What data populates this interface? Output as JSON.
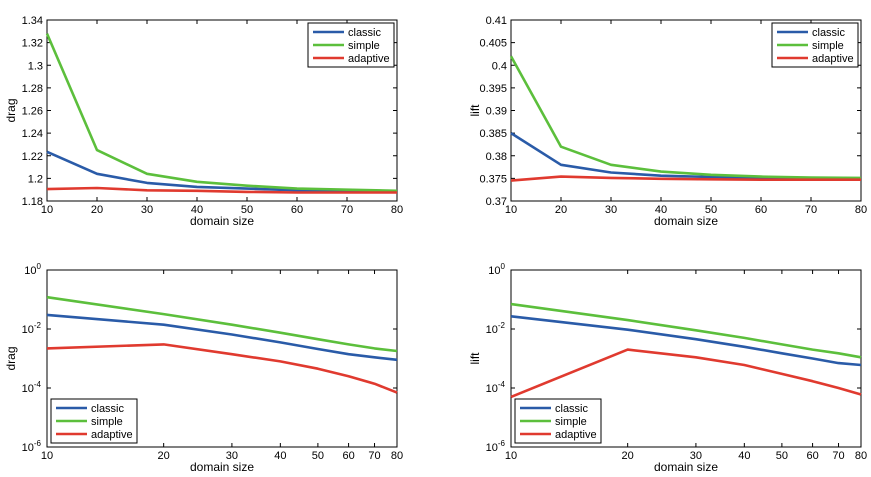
{
  "chart_data": [
    {
      "type": "line",
      "xscale": "linear",
      "yscale": "linear",
      "xlabel": "domain size",
      "ylabel": "drag",
      "xlim": [
        10,
        80
      ],
      "ylim": [
        1.18,
        1.34
      ],
      "xticks": [
        10,
        20,
        30,
        40,
        50,
        60,
        70,
        80
      ],
      "xtick_labels": [
        "10",
        "20",
        "30",
        "40",
        "50",
        "60",
        "70",
        "80"
      ],
      "yticks": [
        1.18,
        1.2,
        1.22,
        1.24,
        1.26,
        1.28,
        1.3,
        1.32,
        1.34
      ],
      "ytick_labels": [
        "1.18",
        "1.2",
        "1.22",
        "1.24",
        "1.26",
        "1.28",
        "1.3",
        "1.32",
        "1.34"
      ],
      "legend_position": "top-right",
      "x": [
        10,
        20,
        30,
        40,
        50,
        60,
        70,
        80
      ],
      "series": [
        {
          "name": "classic",
          "color": "#2a5ba8",
          "values": [
            1.2235,
            1.204,
            1.196,
            1.1925,
            1.191,
            1.1895,
            1.189,
            1.1885
          ]
        },
        {
          "name": "simple",
          "color": "#5cbf3c",
          "values": [
            1.328,
            1.225,
            1.204,
            1.197,
            1.1935,
            1.191,
            1.19,
            1.189
          ]
        },
        {
          "name": "adaptive",
          "color": "#e03a2f",
          "values": [
            1.1905,
            1.1915,
            1.1895,
            1.189,
            1.188,
            1.1875,
            1.1875,
            1.1875
          ]
        }
      ]
    },
    {
      "type": "line",
      "xscale": "linear",
      "yscale": "linear",
      "xlabel": "domain size",
      "ylabel": "lift",
      "xlim": [
        10,
        80
      ],
      "ylim": [
        0.37,
        0.41
      ],
      "xticks": [
        10,
        20,
        30,
        40,
        50,
        60,
        70,
        80
      ],
      "xtick_labels": [
        "10",
        "20",
        "30",
        "40",
        "50",
        "60",
        "70",
        "80"
      ],
      "yticks": [
        0.37,
        0.375,
        0.38,
        0.385,
        0.39,
        0.395,
        0.4,
        0.405,
        0.41
      ],
      "ytick_labels": [
        "0.37",
        "0.375",
        "0.38",
        "0.385",
        "0.39",
        "0.395",
        "0.4",
        "0.405",
        "0.41"
      ],
      "legend_position": "top-right",
      "x": [
        10,
        20,
        30,
        40,
        50,
        60,
        70,
        80
      ],
      "series": [
        {
          "name": "classic",
          "color": "#2a5ba8",
          "values": [
            0.385,
            0.378,
            0.3763,
            0.3756,
            0.3753,
            0.3751,
            0.375,
            0.3749
          ]
        },
        {
          "name": "simple",
          "color": "#5cbf3c",
          "values": [
            0.402,
            0.382,
            0.378,
            0.3765,
            0.3758,
            0.3754,
            0.3752,
            0.3751
          ]
        },
        {
          "name": "adaptive",
          "color": "#e03a2f",
          "values": [
            0.3745,
            0.3754,
            0.3751,
            0.3749,
            0.3748,
            0.3747,
            0.3747,
            0.3747
          ]
        }
      ]
    },
    {
      "type": "line",
      "xscale": "log",
      "yscale": "log",
      "xlabel": "domain size",
      "ylabel": "drag",
      "xlim": [
        10,
        80
      ],
      "ylim": [
        1e-06,
        1
      ],
      "xticks": [
        10,
        20,
        30,
        40,
        50,
        60,
        70,
        80
      ],
      "xtick_labels": [
        "10",
        "20",
        "30",
        "40",
        "50",
        "60",
        "70",
        "80"
      ],
      "yticks": [
        1e-06,
        0.0001,
        0.01,
        1
      ],
      "ytick_labels": [
        [
          "10",
          "-6"
        ],
        [
          "10",
          "-4"
        ],
        [
          "10",
          "-2"
        ],
        [
          "10",
          "0"
        ]
      ],
      "legend_position": "bottom-left",
      "x": [
        10,
        20,
        30,
        40,
        50,
        60,
        70,
        80
      ],
      "series": [
        {
          "name": "classic",
          "color": "#2a5ba8",
          "values": [
            0.03,
            0.014,
            0.0065,
            0.0035,
            0.0021,
            0.0014,
            0.0011,
            0.0009
          ]
        },
        {
          "name": "simple",
          "color": "#5cbf3c",
          "values": [
            0.12,
            0.032,
            0.014,
            0.0075,
            0.0045,
            0.003,
            0.0022,
            0.0018
          ]
        },
        {
          "name": "adaptive",
          "color": "#e03a2f",
          "values": [
            0.0022,
            0.003,
            0.0014,
            0.0008,
            0.00045,
            0.00025,
            0.00014,
            7e-05
          ]
        }
      ]
    },
    {
      "type": "line",
      "xscale": "log",
      "yscale": "log",
      "xlabel": "domain size",
      "ylabel": "lift",
      "xlim": [
        10,
        80
      ],
      "ylim": [
        1e-06,
        1
      ],
      "xticks": [
        10,
        20,
        30,
        40,
        50,
        60,
        70,
        80
      ],
      "xtick_labels": [
        "10",
        "20",
        "30",
        "40",
        "50",
        "60",
        "70",
        "80"
      ],
      "yticks": [
        1e-06,
        0.0001,
        0.01,
        1
      ],
      "ytick_labels": [
        [
          "10",
          "-6"
        ],
        [
          "10",
          "-4"
        ],
        [
          "10",
          "-2"
        ],
        [
          "10",
          "0"
        ]
      ],
      "legend_position": "bottom-left",
      "x": [
        10,
        20,
        30,
        40,
        50,
        60,
        70,
        80
      ],
      "series": [
        {
          "name": "classic",
          "color": "#2a5ba8",
          "values": [
            0.027,
            0.0095,
            0.0045,
            0.0025,
            0.0015,
            0.001,
            0.0007,
            0.0006
          ]
        },
        {
          "name": "simple",
          "color": "#5cbf3c",
          "values": [
            0.07,
            0.02,
            0.009,
            0.005,
            0.003,
            0.002,
            0.0015,
            0.0011
          ]
        },
        {
          "name": "adaptive",
          "color": "#e03a2f",
          "values": [
            5e-05,
            0.002,
            0.0011,
            0.0006,
            0.0003,
            0.00017,
            0.0001,
            6e-05
          ]
        }
      ]
    }
  ]
}
